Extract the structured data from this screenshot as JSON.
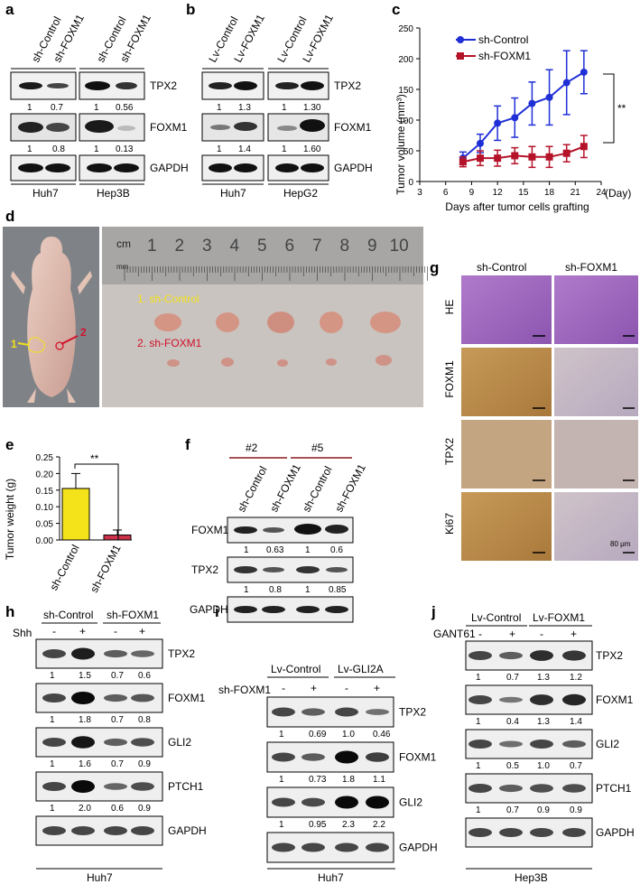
{
  "panels": {
    "a": "a",
    "b": "b",
    "c": "c",
    "d": "d",
    "e": "e",
    "f": "f",
    "g": "g",
    "h": "h",
    "i": "i",
    "j": "j"
  },
  "blot_a": {
    "lanes": [
      "sh-Control",
      "sh-FOXM1",
      "sh-Control",
      "sh-FOXM1"
    ],
    "rows": [
      "TPX2",
      "FOXM1",
      "GAPDH"
    ],
    "values_tpx2": [
      "1",
      "0.7",
      "1",
      "0.56"
    ],
    "values_foxm1": [
      "1",
      "0.8",
      "1",
      "0.13"
    ],
    "cell_lines": [
      "Huh7",
      "Hep3B"
    ]
  },
  "blot_b": {
    "lanes": [
      "Lv-Control",
      "Lv-FOXM1",
      "Lv-Control",
      "Lv-FOXM1"
    ],
    "rows": [
      "TPX2",
      "FOXM1",
      "GAPDH"
    ],
    "values_tpx2": [
      "1",
      "1.3",
      "1",
      "1.30"
    ],
    "values_foxm1": [
      "1",
      "1.4",
      "1",
      "1.60"
    ],
    "cell_lines": [
      "Huh7",
      "HepG2"
    ]
  },
  "chart_data": {
    "type": "line",
    "ylabel": "Tumor volume (mm³)",
    "xlabel": "Days after tumor cells grafting",
    "x_unit": "(Day)",
    "x": [
      8,
      10,
      12,
      14,
      16,
      18,
      20,
      22
    ],
    "xlim": [
      3,
      24
    ],
    "ylim": [
      0,
      250
    ],
    "xticks": [
      "3",
      "6",
      "9",
      "12",
      "15",
      "18",
      "21",
      "24"
    ],
    "yticks": [
      "0",
      "50",
      "100",
      "150",
      "200",
      "250"
    ],
    "legend_position": "top-left",
    "series": [
      {
        "name": "sh-Control",
        "color": "#1f2fd6",
        "marker": "circle",
        "values": [
          38,
          62,
          95,
          104,
          127,
          137,
          161,
          178
        ],
        "errors": [
          10,
          15,
          28,
          32,
          35,
          45,
          52,
          35
        ]
      },
      {
        "name": "sh-FOXM1",
        "color": "#b5132a",
        "marker": "square",
        "values": [
          32,
          38,
          38,
          42,
          40,
          40,
          46,
          57
        ],
        "errors": [
          8,
          12,
          13,
          13,
          17,
          17,
          14,
          18
        ]
      }
    ],
    "significance": "**"
  },
  "panel_d": {
    "ruler_unit": "cm",
    "ruler_sub": "mm",
    "ruler_numbers": [
      "1",
      "2",
      "3",
      "4",
      "5",
      "6",
      "7",
      "8",
      "9",
      "10"
    ],
    "mouse_label_1": "1",
    "mouse_label_2": "2",
    "group1": "1. sh-Control",
    "group2": "2. sh-FOXM1"
  },
  "chart_e": {
    "type": "bar",
    "ylabel": "Tumor weight (g)",
    "categories": [
      "sh-Control",
      "sh-FOXM1"
    ],
    "values": [
      0.155,
      0.015
    ],
    "errors": [
      0.045,
      0.015
    ],
    "colors": [
      "#f4e21a",
      "#c8324a"
    ],
    "ylim": [
      0,
      0.25
    ],
    "yticks": [
      "0.00",
      "0.05",
      "0.10",
      "0.15",
      "0.20",
      "0.25"
    ],
    "significance": "**"
  },
  "blot_f": {
    "groups": [
      "#2",
      "#5"
    ],
    "lanes": [
      "sh-Control",
      "sh-FOXM1",
      "sh-Control",
      "sh-FOXM1"
    ],
    "rows": [
      "FOXM1",
      "TPX2",
      "GAPDH"
    ],
    "values_foxm1": [
      "1",
      "0.63",
      "1",
      "0.6"
    ],
    "values_tpx2": [
      "1",
      "0.8",
      "1",
      "0.85"
    ]
  },
  "panel_g": {
    "cols": [
      "sh-Control",
      "sh-FOXM1"
    ],
    "rows": [
      "HE",
      "FOXM1",
      "TPX2",
      "Ki67"
    ],
    "scale": "80 μm"
  },
  "blot_h": {
    "groups": [
      "sh-Control",
      "sh-FOXM1"
    ],
    "treatment": "Shh",
    "signs": [
      "-",
      "+",
      "-",
      "+"
    ],
    "rows": [
      "TPX2",
      "FOXM1",
      "GLI2",
      "PTCH1",
      "GAPDH"
    ],
    "values": [
      [
        "1",
        "1.5",
        "0.7",
        "0.6"
      ],
      [
        "1",
        "1.8",
        "0.7",
        "0.8"
      ],
      [
        "1",
        "1.6",
        "0.7",
        "0.9"
      ],
      [
        "1",
        "2.0",
        "0.6",
        "0.9"
      ]
    ],
    "cell_line": "Huh7"
  },
  "blot_i": {
    "groups": [
      "Lv-Control",
      "Lv-GLI2A"
    ],
    "treatment": "sh-FOXM1",
    "signs": [
      "-",
      "+",
      "-",
      "+"
    ],
    "rows": [
      "TPX2",
      "FOXM1",
      "GLI2",
      "GAPDH"
    ],
    "values": [
      [
        "1",
        "0.69",
        "1.0",
        "0.46"
      ],
      [
        "1",
        "0.73",
        "1.8",
        "1.1"
      ],
      [
        "1",
        "0.95",
        "2.3",
        "2.2"
      ]
    ],
    "cell_line": "Huh7"
  },
  "blot_j": {
    "groups": [
      "Lv-Control",
      "Lv-FOXM1"
    ],
    "treatment": "GANT61",
    "signs": [
      "-",
      "+",
      "-",
      "+"
    ],
    "rows": [
      "TPX2",
      "FOXM1",
      "GLI2",
      "PTCH1",
      "GAPDH"
    ],
    "values": [
      [
        "1",
        "0.7",
        "1.3",
        "1.2"
      ],
      [
        "1",
        "0.4",
        "1.3",
        "1.4"
      ],
      [
        "1",
        "0.5",
        "1.0",
        "0.7"
      ],
      [
        "1",
        "0.7",
        "0.9",
        "0.9"
      ]
    ],
    "cell_line": "Hep3B"
  }
}
